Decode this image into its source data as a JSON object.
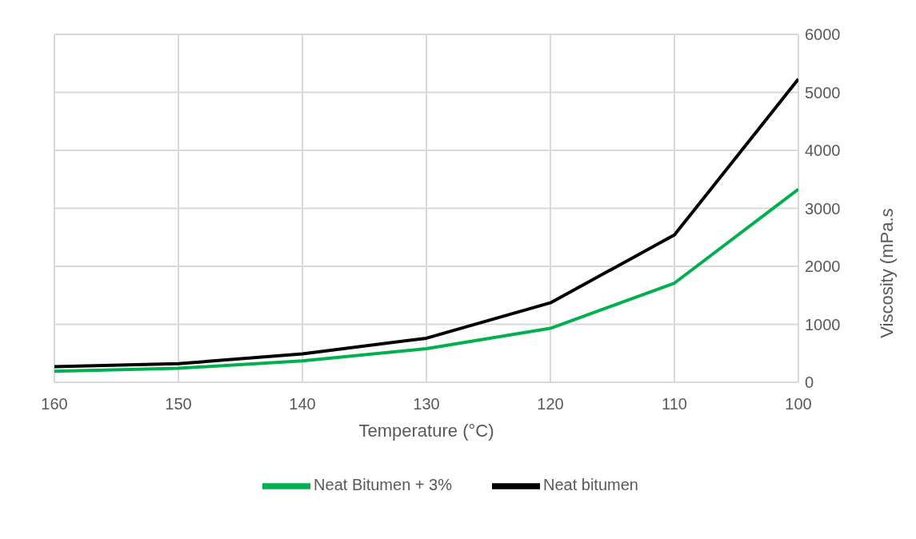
{
  "chart_data": {
    "type": "line",
    "xlabel": "Temperature (°C)",
    "ylabel": "Viscosity (mPa.s",
    "x": [
      160,
      150,
      140,
      130,
      120,
      110,
      100
    ],
    "series": [
      {
        "name": "Neat bitumen",
        "color": "#000000",
        "values": [
          270,
          320,
          490,
          760,
          1370,
          2540,
          5230
        ]
      },
      {
        "name": "Neat Bitumen + 3%",
        "color": "#00b050",
        "values": [
          190,
          240,
          370,
          580,
          930,
          1710,
          3330
        ]
      }
    ],
    "xlim": [
      160,
      100
    ],
    "xticks": [
      160,
      150,
      140,
      130,
      120,
      110,
      100
    ],
    "ylim": [
      0,
      6000
    ],
    "yticks": [
      0,
      1000,
      2000,
      3000,
      4000,
      5000,
      6000
    ],
    "grid": true,
    "legend": "bottom",
    "marker": "none",
    "line_style": "solid"
  }
}
